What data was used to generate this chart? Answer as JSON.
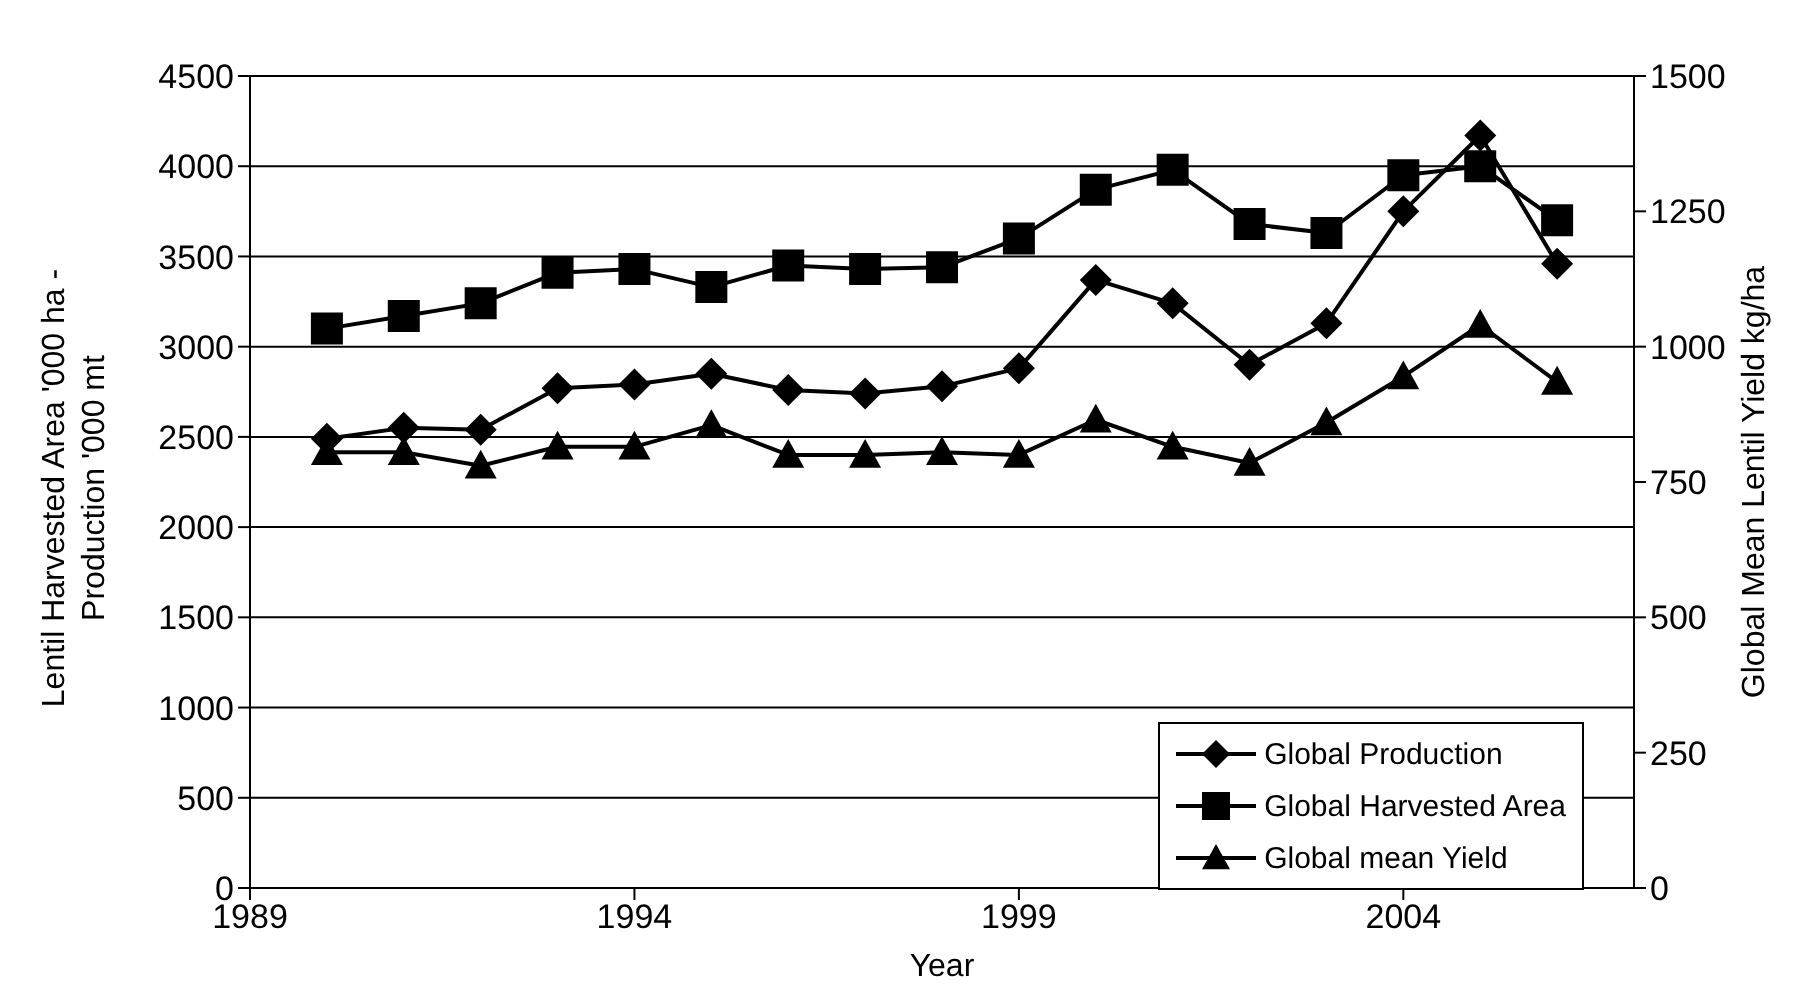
{
  "chart_data": {
    "type": "line",
    "xlabel": "Year",
    "ylabel": "Lentil Harvested Area '000 ha -\nProduction '000 mt",
    "y2label": "Global Mean Lentil Yield kg/ha",
    "x": [
      1990,
      1991,
      1992,
      1993,
      1994,
      1995,
      1996,
      1997,
      1998,
      1999,
      2000,
      2001,
      2002,
      2003,
      2004,
      2005,
      2006
    ],
    "series": [
      {
        "name": "Global Production",
        "color": "#000000",
        "marker": "diamond",
        "values": [
          2490,
          2550,
          2540,
          2770,
          2790,
          2850,
          2760,
          2740,
          2780,
          2880,
          3370,
          3240,
          2900,
          3130,
          3750,
          4170,
          3460
        ]
      },
      {
        "name": "Global Harvested Area",
        "color": "#000000",
        "marker": "square",
        "values": [
          3100,
          3170,
          3240,
          3410,
          3430,
          3330,
          3450,
          3430,
          3440,
          3600,
          3870,
          3980,
          3680,
          3630,
          3950,
          4000,
          3700
        ]
      },
      {
        "name": "Global mean Yield",
        "color": "#000000",
        "marker": "triangle",
        "axis": "y2",
        "values": [
          805,
          805,
          780,
          815,
          815,
          855,
          800,
          800,
          805,
          800,
          865,
          815,
          785,
          860,
          945,
          1040,
          935
        ]
      }
    ],
    "xlim": [
      1989,
      2007
    ],
    "xticks": [
      1989,
      1994,
      1999,
      2004
    ],
    "ylim": [
      0,
      4500
    ],
    "yticks": [
      0,
      500,
      1000,
      1500,
      2000,
      2500,
      3000,
      3500,
      4000,
      4500
    ],
    "y2lim": [
      0,
      1500
    ],
    "y2ticks": [
      0,
      250,
      500,
      750,
      1000,
      1250,
      1500
    ],
    "grid": "y",
    "legend": "bottom right",
    "line_style": "solid"
  }
}
